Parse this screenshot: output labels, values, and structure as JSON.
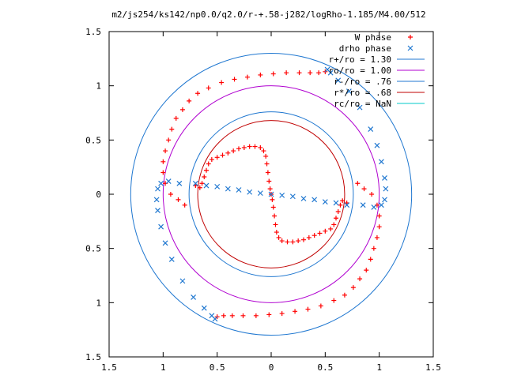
{
  "chart_data": {
    "type": "scatter",
    "title": "m2/js254/ks142/np0.0/q2.0/r-+.58-j282/logRho-1.185/M4.00/512",
    "xlim": [
      -1.5,
      1.5
    ],
    "ylim": [
      -1.5,
      1.5
    ],
    "x_ticks": [
      -1.5,
      -1,
      -0.5,
      0,
      0.5,
      1,
      1.5
    ],
    "y_ticks": [
      -1.5,
      -1,
      -0.5,
      0,
      0.5,
      1,
      1.5
    ],
    "x_tick_labels": [
      "1.5",
      "1",
      "0.5",
      "0",
      "0.5",
      "1",
      "1.5"
    ],
    "y_tick_labels": [
      "1.5",
      "1",
      "0.5",
      "0",
      "0.5",
      "1",
      "1.5"
    ],
    "legend_position": "top-right",
    "grid": false,
    "circles": [
      {
        "name": "r+/ro = 1.30",
        "radius": 1.3,
        "color": "#1f77d0"
      },
      {
        "name": "ro/ro = 1.00",
        "radius": 1.0,
        "color": "#b000d0"
      },
      {
        "name": "r-/ro = .76",
        "radius": 0.76,
        "color": "#1f77d0"
      },
      {
        "name": "r*/ro = .68",
        "radius": 0.68,
        "color": "#c00000"
      },
      {
        "name": "rc/ro = NaN",
        "radius": null,
        "color": "#00c8c8"
      }
    ],
    "series": [
      {
        "name": "W phase",
        "marker": "plus",
        "color": "#ff0000",
        "points": [
          [
            -0.7,
            0.08
          ],
          [
            -0.66,
            0.06
          ],
          [
            -0.64,
            0.1
          ],
          [
            -0.62,
            0.16
          ],
          [
            -0.6,
            0.22
          ],
          [
            -0.58,
            0.28
          ],
          [
            -0.55,
            0.32
          ],
          [
            -0.5,
            0.34
          ],
          [
            -0.45,
            0.36
          ],
          [
            -0.4,
            0.38
          ],
          [
            -0.35,
            0.4
          ],
          [
            -0.3,
            0.42
          ],
          [
            -0.25,
            0.43
          ],
          [
            -0.2,
            0.44
          ],
          [
            -0.15,
            0.44
          ],
          [
            -0.1,
            0.43
          ],
          [
            -0.07,
            0.4
          ],
          [
            -0.05,
            0.35
          ],
          [
            -0.04,
            0.28
          ],
          [
            -0.03,
            0.2
          ],
          [
            -0.02,
            0.12
          ],
          [
            -0.01,
            0.05
          ],
          [
            0.0,
            0.0
          ],
          [
            0.01,
            -0.05
          ],
          [
            0.02,
            -0.12
          ],
          [
            0.03,
            -0.2
          ],
          [
            0.04,
            -0.28
          ],
          [
            0.05,
            -0.35
          ],
          [
            0.07,
            -0.4
          ],
          [
            0.1,
            -0.43
          ],
          [
            0.15,
            -0.44
          ],
          [
            0.2,
            -0.44
          ],
          [
            0.25,
            -0.43
          ],
          [
            0.3,
            -0.42
          ],
          [
            0.35,
            -0.4
          ],
          [
            0.4,
            -0.38
          ],
          [
            0.45,
            -0.36
          ],
          [
            0.5,
            -0.34
          ],
          [
            0.55,
            -0.32
          ],
          [
            0.58,
            -0.28
          ],
          [
            0.6,
            -0.22
          ],
          [
            0.62,
            -0.16
          ],
          [
            0.64,
            -0.1
          ],
          [
            0.66,
            -0.06
          ],
          [
            0.7,
            -0.08
          ],
          [
            -0.8,
            -0.1
          ],
          [
            -0.86,
            -0.05
          ],
          [
            -0.93,
            0.0
          ],
          [
            -0.98,
            0.1
          ],
          [
            -1.0,
            0.2
          ],
          [
            -1.0,
            0.3
          ],
          [
            -0.98,
            0.4
          ],
          [
            -0.95,
            0.5
          ],
          [
            -0.92,
            0.6
          ],
          [
            -0.88,
            0.7
          ],
          [
            -0.82,
            0.78
          ],
          [
            -0.76,
            0.86
          ],
          [
            -0.68,
            0.93
          ],
          [
            -0.58,
            0.98
          ],
          [
            -0.46,
            1.03
          ],
          [
            -0.34,
            1.06
          ],
          [
            -0.22,
            1.08
          ],
          [
            -0.1,
            1.1
          ],
          [
            0.02,
            1.11
          ],
          [
            0.14,
            1.12
          ],
          [
            0.26,
            1.12
          ],
          [
            0.36,
            1.12
          ],
          [
            0.44,
            1.12
          ],
          [
            0.5,
            1.13
          ],
          [
            0.8,
            0.1
          ],
          [
            0.86,
            0.05
          ],
          [
            0.93,
            0.0
          ],
          [
            0.98,
            -0.1
          ],
          [
            1.0,
            -0.2
          ],
          [
            1.0,
            -0.3
          ],
          [
            0.98,
            -0.4
          ],
          [
            0.95,
            -0.5
          ],
          [
            0.92,
            -0.6
          ],
          [
            0.88,
            -0.7
          ],
          [
            0.82,
            -0.78
          ],
          [
            0.76,
            -0.86
          ],
          [
            0.68,
            -0.93
          ],
          [
            0.58,
            -0.98
          ],
          [
            0.46,
            -1.03
          ],
          [
            0.34,
            -1.06
          ],
          [
            0.22,
            -1.08
          ],
          [
            0.1,
            -1.1
          ],
          [
            -0.02,
            -1.11
          ],
          [
            -0.14,
            -1.12
          ],
          [
            -0.26,
            -1.12
          ],
          [
            -0.36,
            -1.12
          ],
          [
            -0.44,
            -1.12
          ],
          [
            -0.5,
            -1.13
          ]
        ]
      },
      {
        "name": "drho phase",
        "marker": "cross",
        "color": "#1f77d0",
        "points": [
          [
            -0.7,
            0.1
          ],
          [
            -0.6,
            0.08
          ],
          [
            -0.5,
            0.07
          ],
          [
            -0.4,
            0.05
          ],
          [
            -0.3,
            0.04
          ],
          [
            -0.2,
            0.02
          ],
          [
            -0.1,
            0.01
          ],
          [
            0.0,
            0.0
          ],
          [
            0.1,
            -0.01
          ],
          [
            0.2,
            -0.02
          ],
          [
            0.3,
            -0.04
          ],
          [
            0.4,
            -0.05
          ],
          [
            0.5,
            -0.07
          ],
          [
            0.6,
            -0.08
          ],
          [
            0.7,
            -0.1
          ],
          [
            -0.85,
            0.1
          ],
          [
            -0.95,
            0.12
          ],
          [
            -1.02,
            0.1
          ],
          [
            -1.05,
            0.05
          ],
          [
            -1.06,
            -0.05
          ],
          [
            -1.05,
            -0.15
          ],
          [
            -1.02,
            -0.3
          ],
          [
            -0.98,
            -0.45
          ],
          [
            -0.92,
            -0.6
          ],
          [
            -0.82,
            -0.8
          ],
          [
            -0.72,
            -0.95
          ],
          [
            -0.62,
            -1.05
          ],
          [
            -0.55,
            -1.12
          ],
          [
            -0.52,
            -1.15
          ],
          [
            0.85,
            -0.1
          ],
          [
            0.95,
            -0.12
          ],
          [
            1.02,
            -0.1
          ],
          [
            1.05,
            -0.05
          ],
          [
            1.06,
            0.05
          ],
          [
            1.05,
            0.15
          ],
          [
            1.02,
            0.3
          ],
          [
            0.98,
            0.45
          ],
          [
            0.92,
            0.6
          ],
          [
            0.82,
            0.8
          ],
          [
            0.72,
            0.95
          ],
          [
            0.62,
            1.05
          ],
          [
            0.55,
            1.12
          ],
          [
            0.52,
            1.15
          ]
        ]
      }
    ]
  }
}
